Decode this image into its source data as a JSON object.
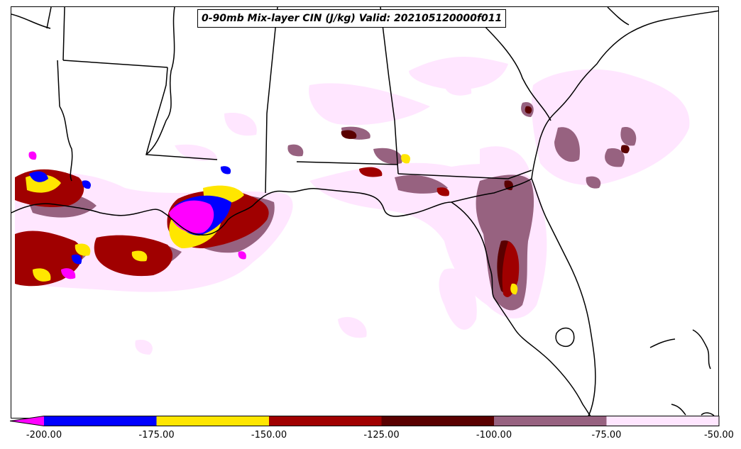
{
  "title": "0-90mb Mix-layer CIN (J/kg) Valid: 202105120000f011",
  "colorbar": {
    "extend": "min",
    "ticks": [
      "-200.00",
      "-175.00",
      "-150.00",
      "-125.00",
      "-100.00",
      "-75.00",
      "-50.00"
    ],
    "levels": [
      {
        "range": [
          -225,
          -200
        ],
        "color": "#ff00ff"
      },
      {
        "range": [
          -200,
          -175
        ],
        "color": "#0000ff"
      },
      {
        "range": [
          -175,
          -150
        ],
        "color": "#ffe600"
      },
      {
        "range": [
          -150,
          -125
        ],
        "color": "#a00000"
      },
      {
        "range": [
          -125,
          -100
        ],
        "color": "#5a0000"
      },
      {
        "range": [
          -100,
          -75
        ],
        "color": "#976280"
      },
      {
        "range": [
          -75,
          -50
        ],
        "color": "#ffe6ff"
      }
    ]
  },
  "colors": {
    "boundary": "#000000",
    "background": "#ffffff"
  }
}
